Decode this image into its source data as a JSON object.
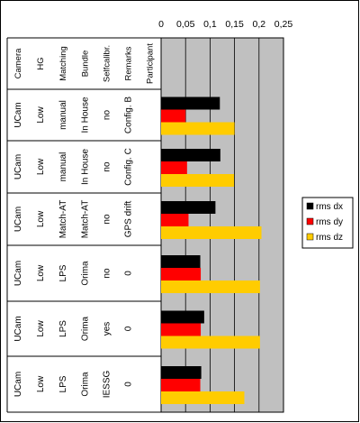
{
  "chart_data": {
    "type": "bar",
    "orientation": "horizontal",
    "x_ticks": [
      "0",
      "0,05",
      "0,1",
      "0,15",
      "0,2",
      "0,25"
    ],
    "xlim": [
      0,
      0.25
    ],
    "grid": true,
    "legend_position": "right",
    "row_headers": [
      "Camera",
      "HG",
      "Matching",
      "Bundle",
      "Selfcalibr.",
      "Remarks",
      "Participant"
    ],
    "rows": [
      {
        "cells": [
          "UCam",
          "Low",
          "manual",
          "In House",
          "no",
          "Config. B",
          ""
        ]
      },
      {
        "cells": [
          "UCam",
          "Low",
          "manual",
          "In House",
          "no",
          "Config. C",
          ""
        ]
      },
      {
        "cells": [
          "UCam",
          "Low",
          "Match-AT",
          "Match-AT",
          "no",
          "GPS drift",
          ""
        ]
      },
      {
        "cells": [
          "UCam",
          "Low",
          "LPS",
          "Orima",
          "no",
          "0",
          ""
        ]
      },
      {
        "cells": [
          "UCam",
          "Low",
          "LPS",
          "Orima",
          "yes",
          "0",
          ""
        ]
      },
      {
        "cells": [
          "UCam",
          "Low",
          "LPS",
          "Orima",
          "IESSG",
          "0",
          ""
        ]
      }
    ],
    "series": [
      {
        "name": "rms dx",
        "color": "#000000",
        "values": [
          0.12,
          0.121,
          0.111,
          0.08,
          0.088,
          0.082
        ]
      },
      {
        "name": "rms dy",
        "color": "#ff0000",
        "values": [
          0.05,
          0.053,
          0.056,
          0.081,
          0.081,
          0.08
        ]
      },
      {
        "name": "rms dz",
        "color": "#ffcc00",
        "values": [
          0.15,
          0.149,
          0.205,
          0.202,
          0.202,
          0.17
        ]
      }
    ]
  }
}
